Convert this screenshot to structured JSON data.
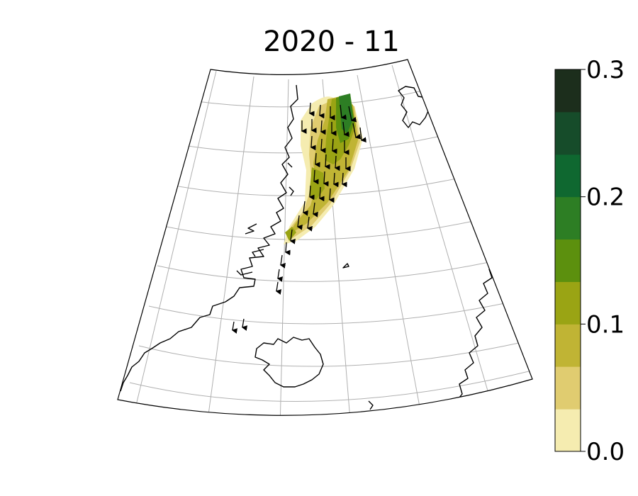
{
  "title": "2020 - 11",
  "colorbar": {
    "min": 0.0,
    "max": 0.3,
    "ticks": [
      {
        "label": "0.3",
        "value": 0.3
      },
      {
        "label": "0.2",
        "value": 0.2
      },
      {
        "label": "0.1",
        "value": 0.1
      },
      {
        "label": "0.0",
        "value": 0.0
      }
    ],
    "levels": [
      {
        "from": 0.0,
        "to": 0.0333,
        "color": "#f5ecb0"
      },
      {
        "from": 0.0333,
        "to": 0.0667,
        "color": "#e0cc70"
      },
      {
        "from": 0.0667,
        "to": 0.1,
        "color": "#c0b434"
      },
      {
        "from": 0.1,
        "to": 0.1333,
        "color": "#9aa414"
      },
      {
        "from": 0.1333,
        "to": 0.1667,
        "color": "#5c900e"
      },
      {
        "from": 0.1667,
        "to": 0.2,
        "color": "#2d7e24"
      },
      {
        "from": 0.2,
        "to": 0.2333,
        "color": "#0f6830"
      },
      {
        "from": 0.2333,
        "to": 0.2667,
        "color": "#164c2a"
      },
      {
        "from": 0.2667,
        "to": 0.3,
        "color": "#1c2e1c"
      }
    ]
  },
  "map": {
    "coastline_color": "#000000",
    "gridline_color": "#b0b0b0",
    "vector_color": "#000000"
  }
}
